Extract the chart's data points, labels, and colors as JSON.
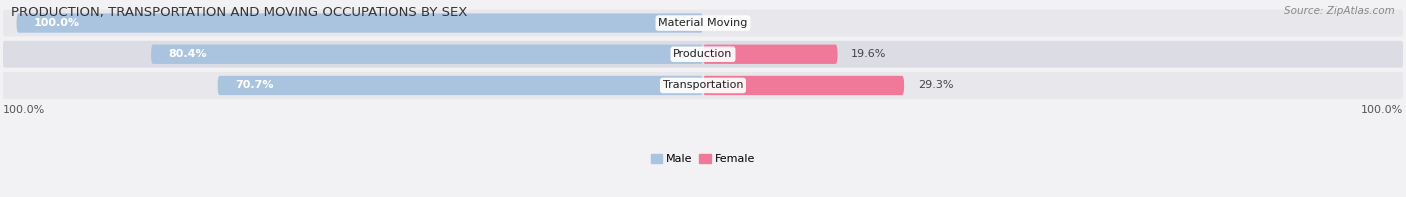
{
  "title": "PRODUCTION, TRANSPORTATION AND MOVING OCCUPATIONS BY SEX",
  "source": "Source: ZipAtlas.com",
  "categories": [
    "Material Moving",
    "Production",
    "Transportation"
  ],
  "male_pct": [
    100.0,
    80.4,
    70.7
  ],
  "female_pct": [
    0.0,
    19.6,
    29.3
  ],
  "male_color": "#aac4e0",
  "female_color": "#f07898",
  "row_bg_color_odd": "#e8e8ec",
  "row_bg_color_even": "#dcdce4",
  "bar_height": 0.62,
  "figsize": [
    14.06,
    1.97
  ],
  "dpi": 100,
  "title_fontsize": 9.5,
  "label_fontsize": 8.0,
  "tick_fontsize": 8.0,
  "source_fontsize": 7.5,
  "male_label_color": "white",
  "pct_label_color": "#444444",
  "cat_label_color": "#222222",
  "bottom_label_color": "#555555",
  "title_color": "#333333"
}
